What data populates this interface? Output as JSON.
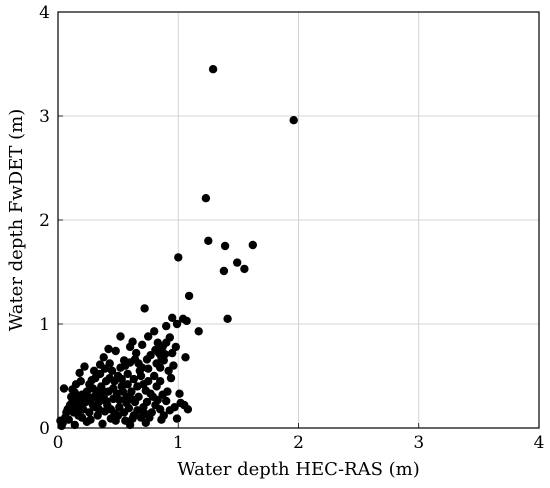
{
  "chart_data": {
    "type": "scatter",
    "title": "",
    "xlabel": "Water depth HEC-RAS (m)",
    "ylabel": "Water depth FwDET (m)",
    "xlim": [
      0,
      4
    ],
    "ylim": [
      0,
      4
    ],
    "xticks": [
      "0",
      "1",
      "2",
      "3",
      "4"
    ],
    "yticks": [
      "0",
      "1",
      "2",
      "3",
      "4"
    ],
    "grid": true,
    "legend": "none",
    "marker_color": "#000000",
    "series": [
      {
        "points": [
          [
            1.29,
            3.45
          ],
          [
            1.96,
            2.96
          ],
          [
            1.23,
            2.21
          ],
          [
            1.25,
            1.8
          ],
          [
            1.39,
            1.75
          ],
          [
            1.62,
            1.76
          ],
          [
            1.49,
            1.59
          ],
          [
            1.38,
            1.51
          ],
          [
            1.55,
            1.53
          ],
          [
            1.0,
            1.64
          ],
          [
            1.41,
            1.05
          ],
          [
            0.95,
            1.06
          ],
          [
            1.09,
            1.27
          ],
          [
            0.72,
            1.15
          ],
          [
            0.99,
            1.0
          ],
          [
            1.04,
            1.05
          ],
          [
            1.07,
            1.03
          ],
          [
            0.9,
            0.98
          ],
          [
            0.93,
            0.87
          ],
          [
            1.17,
            0.93
          ],
          [
            0.8,
            0.93
          ],
          [
            0.95,
            0.72
          ],
          [
            1.06,
            0.68
          ],
          [
            0.75,
            0.88
          ],
          [
            0.83,
            0.82
          ],
          [
            0.7,
            0.8
          ],
          [
            0.6,
            0.78
          ],
          [
            0.65,
            0.72
          ],
          [
            0.55,
            0.65
          ],
          [
            0.48,
            0.74
          ],
          [
            0.42,
            0.76
          ],
          [
            0.38,
            0.68
          ],
          [
            0.35,
            0.61
          ],
          [
            0.3,
            0.55
          ],
          [
            0.28,
            0.46
          ],
          [
            0.22,
            0.59
          ],
          [
            0.18,
            0.53
          ],
          [
            0.52,
            0.88
          ],
          [
            0.62,
            0.83
          ],
          [
            0.85,
            0.58
          ],
          [
            0.88,
            0.65
          ],
          [
            0.94,
            0.48
          ],
          [
            0.91,
            0.35
          ],
          [
            0.82,
            0.4
          ],
          [
            0.75,
            0.45
          ],
          [
            0.68,
            0.55
          ],
          [
            0.58,
            0.52
          ],
          [
            0.5,
            0.5
          ],
          [
            0.45,
            0.55
          ],
          [
            0.4,
            0.45
          ],
          [
            0.36,
            0.4
          ],
          [
            0.33,
            0.35
          ],
          [
            0.29,
            0.38
          ],
          [
            0.25,
            0.3
          ],
          [
            0.2,
            0.32
          ],
          [
            0.16,
            0.28
          ],
          [
            0.12,
            0.25
          ],
          [
            0.1,
            0.22
          ],
          [
            0.08,
            0.18
          ],
          [
            0.06,
            0.1
          ],
          [
            0.04,
            0.05
          ],
          [
            0.03,
            0.02
          ],
          [
            0.05,
            0.38
          ],
          [
            0.12,
            0.37
          ],
          [
            0.17,
            0.12
          ],
          [
            0.21,
            0.18
          ],
          [
            0.26,
            0.15
          ],
          [
            0.31,
            0.2
          ],
          [
            0.34,
            0.25
          ],
          [
            0.38,
            0.3
          ],
          [
            0.42,
            0.35
          ],
          [
            0.46,
            0.28
          ],
          [
            0.49,
            0.33
          ],
          [
            0.53,
            0.4
          ],
          [
            0.57,
            0.3
          ],
          [
            0.61,
            0.35
          ],
          [
            0.64,
            0.25
          ],
          [
            0.67,
            0.3
          ],
          [
            0.71,
            0.2
          ],
          [
            0.74,
            0.25
          ],
          [
            0.78,
            0.15
          ],
          [
            0.81,
            0.22
          ],
          [
            0.85,
            0.18
          ],
          [
            0.88,
            0.12
          ],
          [
            0.93,
            0.17
          ],
          [
            0.97,
            0.2
          ],
          [
            1.02,
            0.24
          ],
          [
            1.05,
            0.22
          ],
          [
            1.08,
            0.18
          ],
          [
            0.99,
            0.09
          ],
          [
            0.86,
            0.08
          ],
          [
            0.73,
            0.05
          ],
          [
            0.6,
            0.03
          ],
          [
            0.48,
            0.07
          ],
          [
            0.37,
            0.04
          ],
          [
            0.24,
            0.06
          ],
          [
            0.14,
            0.03
          ],
          [
            0.09,
            0.08
          ],
          [
            0.18,
            0.22
          ],
          [
            0.23,
            0.25
          ],
          [
            0.27,
            0.28
          ],
          [
            0.32,
            0.32
          ],
          [
            0.36,
            0.27
          ],
          [
            0.41,
            0.22
          ],
          [
            0.44,
            0.18
          ],
          [
            0.47,
            0.14
          ],
          [
            0.51,
            0.2
          ],
          [
            0.55,
            0.15
          ],
          [
            0.59,
            0.19
          ],
          [
            0.63,
            0.12
          ],
          [
            0.66,
            0.17
          ],
          [
            0.69,
            0.1
          ],
          [
            0.72,
            0.14
          ],
          [
            0.76,
            0.1
          ],
          [
            0.79,
            0.3
          ],
          [
            0.83,
            0.27
          ],
          [
            0.87,
            0.32
          ],
          [
            0.9,
            0.26
          ],
          [
            0.15,
            0.42
          ],
          [
            0.19,
            0.45
          ],
          [
            0.26,
            0.42
          ],
          [
            0.31,
            0.48
          ],
          [
            0.35,
            0.52
          ],
          [
            0.39,
            0.57
          ],
          [
            0.43,
            0.62
          ],
          [
            0.47,
            0.45
          ],
          [
            0.52,
            0.58
          ],
          [
            0.56,
            0.6
          ],
          [
            0.6,
            0.63
          ],
          [
            0.64,
            0.66
          ],
          [
            0.67,
            0.62
          ],
          [
            0.7,
            0.58
          ],
          [
            0.74,
            0.66
          ],
          [
            0.77,
            0.7
          ],
          [
            0.81,
            0.75
          ],
          [
            0.84,
            0.72
          ],
          [
            0.87,
            0.78
          ],
          [
            0.9,
            0.82
          ],
          [
            0.13,
            0.15
          ],
          [
            0.16,
            0.19
          ],
          [
            0.2,
            0.1
          ],
          [
            0.27,
            0.08
          ],
          [
            0.33,
            0.12
          ],
          [
            0.39,
            0.16
          ],
          [
            0.44,
            0.09
          ],
          [
            0.5,
            0.12
          ],
          [
            0.56,
            0.07
          ],
          [
            0.62,
            0.09
          ],
          [
            0.11,
            0.3
          ],
          [
            0.14,
            0.34
          ],
          [
            0.24,
            0.35
          ],
          [
            0.29,
            0.22
          ],
          [
            0.34,
            0.18
          ],
          [
            0.4,
            0.26
          ],
          [
            0.46,
            0.38
          ],
          [
            0.51,
            0.27
          ],
          [
            0.54,
            0.35
          ],
          [
            0.58,
            0.42
          ],
          [
            0.63,
            0.47
          ],
          [
            0.66,
            0.4
          ],
          [
            0.71,
            0.42
          ],
          [
            0.73,
            0.36
          ],
          [
            0.77,
            0.33
          ],
          [
            0.8,
            0.5
          ],
          [
            0.85,
            0.45
          ],
          [
            0.92,
            0.55
          ],
          [
            0.96,
            0.6
          ],
          [
            0.98,
            0.78
          ],
          [
            1.01,
            0.33
          ],
          [
            0.07,
            0.15
          ],
          [
            0.02,
            0.07
          ],
          [
            0.43,
            0.48
          ],
          [
            0.37,
            0.36
          ],
          [
            0.3,
            0.3
          ],
          [
            0.22,
            0.27
          ],
          [
            0.53,
            0.47
          ],
          [
            0.57,
            0.24
          ],
          [
            0.61,
            0.28
          ],
          [
            0.69,
            0.5
          ],
          [
            0.75,
            0.57
          ],
          [
            0.82,
            0.62
          ],
          [
            0.86,
            0.68
          ],
          [
            0.89,
            0.71
          ]
        ]
      }
    ]
  }
}
